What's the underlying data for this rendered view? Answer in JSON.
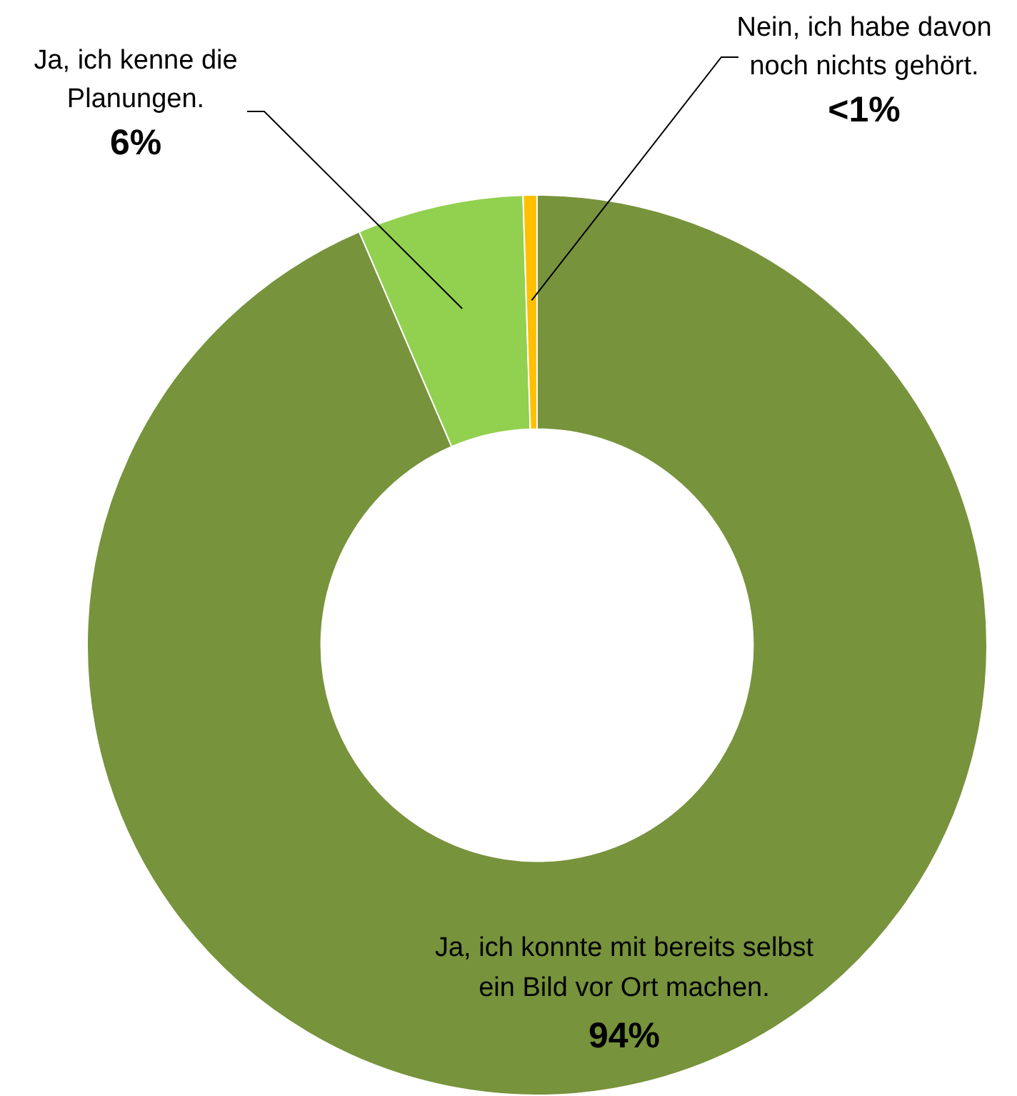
{
  "chart_data": {
    "type": "donut",
    "categories": [
      "Ja, ich konnte mit bereits selbst ein Bild vor Ort machen.",
      "Ja, ich kenne die Planungen.",
      "Nein, ich habe davon noch nichts gehört."
    ],
    "values": [
      94,
      6,
      0.5
    ],
    "value_labels": [
      "94%",
      "6%",
      "<1%"
    ],
    "colors": [
      "#77933c",
      "#92d050",
      "#ffc000"
    ],
    "legend": false
  }
}
